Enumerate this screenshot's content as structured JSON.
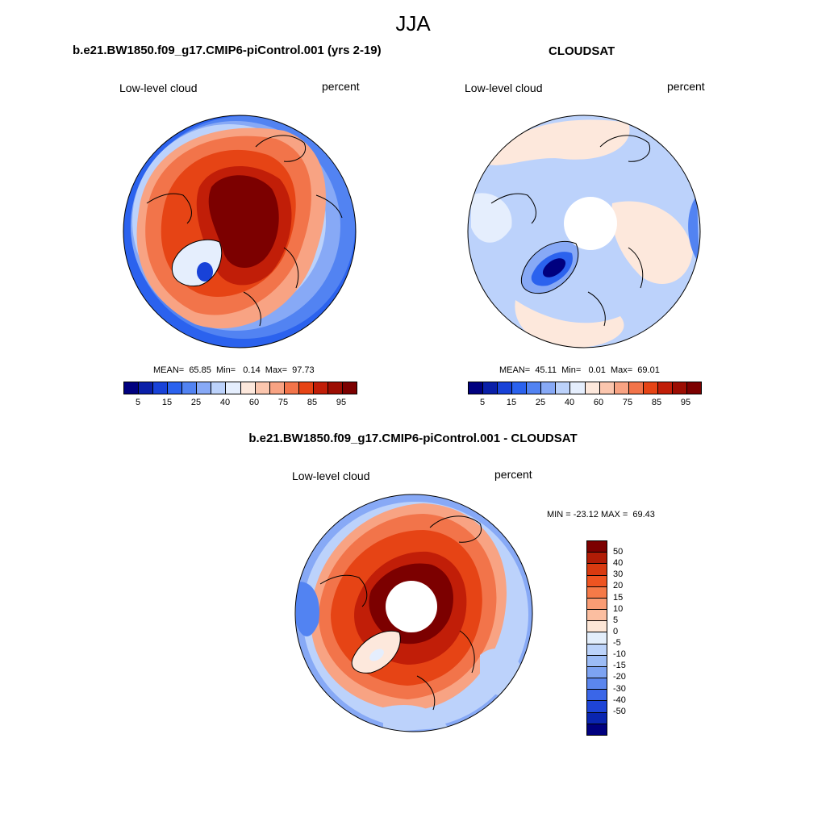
{
  "title": "JJA",
  "panels": [
    {
      "id": "model",
      "title": "b.e21.BW1850.f09_g17.CMIP6-piControl.001 (yrs 2-19)",
      "left_label": "Low-level cloud",
      "right_label": "percent",
      "stats": "MEAN=  65.85  Min=   0.14  Max=  97.73"
    },
    {
      "id": "obs",
      "title": "CLOUDSAT",
      "left_label": "Low-level cloud",
      "right_label": "percent",
      "stats": "MEAN=  45.11  Min=   0.01  Max=  69.01"
    },
    {
      "id": "diff",
      "title": "b.e21.BW1850.f09_g17.CMIP6-piControl.001 - CLOUDSAT",
      "left_label": "Low-level cloud",
      "right_label": "percent",
      "stats": "MIN = -23.12 MAX =  69.43"
    }
  ],
  "colorbar_abs": {
    "colors": [
      "#00007f",
      "#0a1fa8",
      "#1842d8",
      "#2b62ee",
      "#5283f2",
      "#87a9f6",
      "#bcd2fb",
      "#e5eefd",
      "#fde8dc",
      "#fbc6ae",
      "#f8a383",
      "#f2744a",
      "#e64415",
      "#c11e08",
      "#9c0d02",
      "#7c0000"
    ],
    "tick_labels": [
      "5",
      "15",
      "25",
      "40",
      "60",
      "75",
      "85",
      "95"
    ]
  },
  "colorbar_diff": {
    "colors": [
      "#7c0000",
      "#b11c06",
      "#d83a10",
      "#ee5421",
      "#f57a48",
      "#f99c74",
      "#fbbea0",
      "#fde6d6",
      "#e3eefb",
      "#bcd3fa",
      "#9cbcf6",
      "#7da3f2",
      "#5b86ee",
      "#3a66e8",
      "#1e44d6",
      "#0a25b0",
      "#00007f"
    ],
    "tick_labels": [
      "50",
      "40",
      "30",
      "20",
      "15",
      "10",
      "5",
      "0",
      "-5",
      "-10",
      "-15",
      "-20",
      "-30",
      "-40",
      "-50"
    ]
  },
  "map_colors": {
    "dark_red": "#7c0000",
    "red": "#c11e08",
    "orange_red": "#e64415",
    "orange": "#f2744a",
    "salmon": "#f8a383",
    "light_salmon": "#fbc6ae",
    "pale_peach": "#fde8dc",
    "pale_blue": "#e5eefd",
    "light_blue": "#bcd2fb",
    "mid_blue": "#87a9f6",
    "blue": "#5283f2",
    "strong_blue": "#2b62ee",
    "deep_blue": "#1842d8",
    "navy": "#00007f"
  }
}
